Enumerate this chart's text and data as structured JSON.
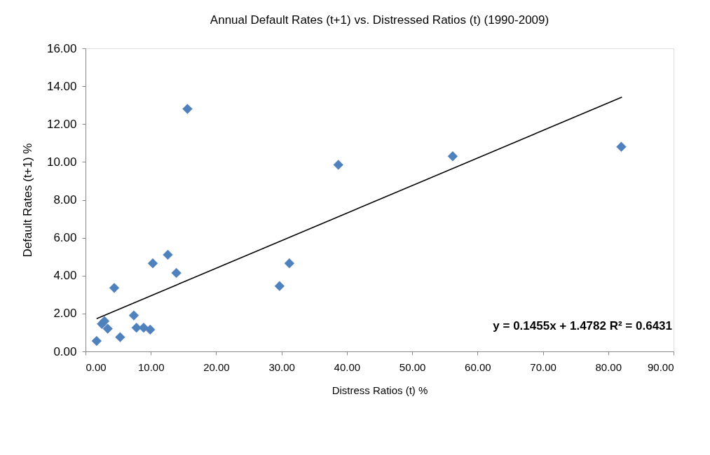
{
  "chart_data": {
    "type": "scatter",
    "title": "Annual Default Rates (t+1) vs. Distressed Ratios (t)  (1990-2009)",
    "xlabel": "Distress Ratios (t) %",
    "ylabel": "Default Rates (t+1) %",
    "series": [
      {
        "type": "scatter",
        "color": "#4f81bd",
        "marker": "diamond",
        "x": [
          1.7,
          2.5,
          2.9,
          3.4,
          4.4,
          5.3,
          7.4,
          7.8,
          8.9,
          9.9,
          10.3,
          12.6,
          13.9,
          15.6,
          29.7,
          31.2,
          38.7,
          56.2,
          82.0
        ],
        "values": [
          0.55,
          1.45,
          1.6,
          1.2,
          3.35,
          0.75,
          1.9,
          1.25,
          1.25,
          1.15,
          4.65,
          5.1,
          4.14,
          12.8,
          3.45,
          4.65,
          9.85,
          10.3,
          10.8
        ]
      },
      {
        "type": "line",
        "color": "#000000",
        "marker": "none",
        "line_style": "solid",
        "x": [
          1.7,
          82.1
        ],
        "values": [
          1.73,
          13.42
        ]
      }
    ],
    "annotations": [
      "y = 0.1455x + 1.4782 R² = 0.6431"
    ],
    "xlim": [
      0,
      90
    ],
    "ylim": [
      0,
      16
    ],
    "xticks": [
      {
        "value": 0,
        "label": "0.00"
      },
      {
        "value": 10,
        "label": "10.00"
      },
      {
        "value": 20,
        "label": "20.00"
      },
      {
        "value": 30,
        "label": "30.00"
      },
      {
        "value": 40,
        "label": "40.00"
      },
      {
        "value": 50,
        "label": "50.00"
      },
      {
        "value": 60,
        "label": "60.00"
      },
      {
        "value": 70,
        "label": "70.00"
      },
      {
        "value": 80,
        "label": "80.00"
      },
      {
        "value": 90,
        "label": "90.00"
      }
    ],
    "yticks": [
      {
        "value": 0,
        "label": "0.00"
      },
      {
        "value": 2,
        "label": "2.00"
      },
      {
        "value": 4,
        "label": "4.00"
      },
      {
        "value": 6,
        "label": "6.00"
      },
      {
        "value": 8,
        "label": "8.00"
      },
      {
        "value": 10,
        "label": "10.00"
      },
      {
        "value": 12,
        "label": "12.00"
      },
      {
        "value": 14,
        "label": "14.00"
      },
      {
        "value": 16,
        "label": "16.00"
      }
    ],
    "grid": false
  }
}
